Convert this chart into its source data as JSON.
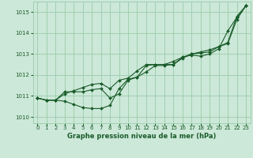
{
  "bg_color": "#cce8d8",
  "grid_color": "#99ccaa",
  "line_color": "#1a5c2a",
  "xlabel": "Graphe pression niveau de la mer (hPa)",
  "xlim": [
    -0.5,
    23.5
  ],
  "ylim": [
    1009.7,
    1015.5
  ],
  "yticks": [
    1010,
    1011,
    1012,
    1013,
    1014,
    1015
  ],
  "xticks": [
    0,
    1,
    2,
    3,
    4,
    5,
    6,
    7,
    8,
    9,
    10,
    11,
    12,
    13,
    14,
    15,
    16,
    17,
    18,
    19,
    20,
    21,
    22,
    23
  ],
  "series1": [
    1010.9,
    1010.8,
    1010.8,
    1010.75,
    1010.6,
    1010.45,
    1010.4,
    1010.4,
    1010.55,
    1011.35,
    1011.8,
    1011.9,
    1012.45,
    1012.5,
    1012.5,
    1012.5,
    1012.85,
    1012.95,
    1012.9,
    1013.0,
    1013.25,
    1014.1,
    1014.75,
    1015.3
  ],
  "series2": [
    1010.9,
    1010.8,
    1010.8,
    1011.1,
    1011.25,
    1011.4,
    1011.55,
    1011.6,
    1011.35,
    1011.75,
    1011.85,
    1012.2,
    1012.5,
    1012.5,
    1012.5,
    1012.65,
    1012.85,
    1013.0,
    1013.05,
    1013.1,
    1013.35,
    1013.5,
    1014.65,
    1015.3
  ],
  "series3": [
    1010.9,
    1010.8,
    1010.8,
    1011.2,
    1011.2,
    1011.2,
    1011.3,
    1011.35,
    1010.9,
    1011.1,
    1011.75,
    1011.9,
    1012.15,
    1012.45,
    1012.45,
    1012.5,
    1012.8,
    1013.0,
    1013.1,
    1013.2,
    1013.35,
    1013.55,
    1014.8,
    1015.3
  ],
  "tick_fontsize": 5.0,
  "xlabel_fontsize": 6.0,
  "markersize": 2.0,
  "linewidth": 0.8
}
